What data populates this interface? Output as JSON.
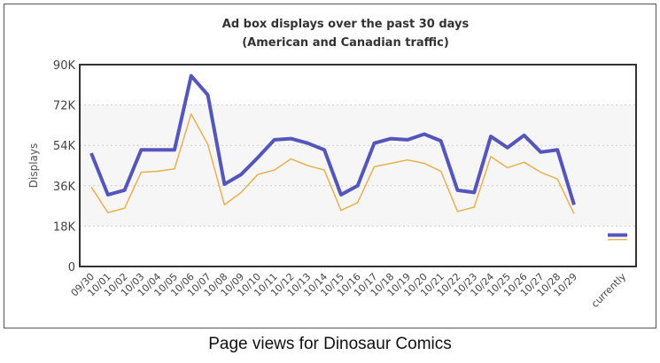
{
  "caption": "Page views for Dinosaur Comics",
  "chart_data": {
    "type": "line",
    "title": "Ad box displays over the past 30 days",
    "subtitle": "(American and Canadian traffic)",
    "ylabel": "Displays",
    "xlabel": "",
    "ylim": [
      0,
      90000
    ],
    "yticks": [
      "0",
      "18K",
      "36K",
      "54K",
      "72K",
      "90K"
    ],
    "grid": "horizontal dotted, shaded band 18K-72K",
    "categories": [
      "09/30",
      "10/01",
      "10/02",
      "10/03",
      "10/04",
      "10/05",
      "10/06",
      "10/07",
      "10/08",
      "10/09",
      "10/10",
      "10/11",
      "10/12",
      "10/13",
      "10/14",
      "10/15",
      "10/16",
      "10/17",
      "10/18",
      "10/19",
      "10/20",
      "10/21",
      "10/22",
      "10/23",
      "10/24",
      "10/25",
      "10/26",
      "10/27",
      "10/28",
      "10/29"
    ],
    "current_label": "currently",
    "series": [
      {
        "color": "#5555bb",
        "values": [
          50500,
          32000,
          34000,
          52000,
          52000,
          52000,
          85000,
          76500,
          36700,
          41000,
          48500,
          56500,
          57000,
          55000,
          52000,
          32000,
          36000,
          55000,
          57000,
          56500,
          59000,
          56000,
          34000,
          33000,
          58000,
          53000,
          58500,
          51000,
          52000,
          27500
        ],
        "current": 14000
      },
      {
        "color": "#e8b050",
        "values": [
          35500,
          24000,
          26000,
          42000,
          42500,
          43500,
          68000,
          54500,
          27500,
          33000,
          41000,
          43000,
          48000,
          45000,
          43000,
          25000,
          28500,
          44500,
          46000,
          47500,
          46000,
          42500,
          24500,
          26500,
          49000,
          44000,
          46500,
          42000,
          39000,
          23500
        ],
        "current": 12000
      }
    ]
  }
}
